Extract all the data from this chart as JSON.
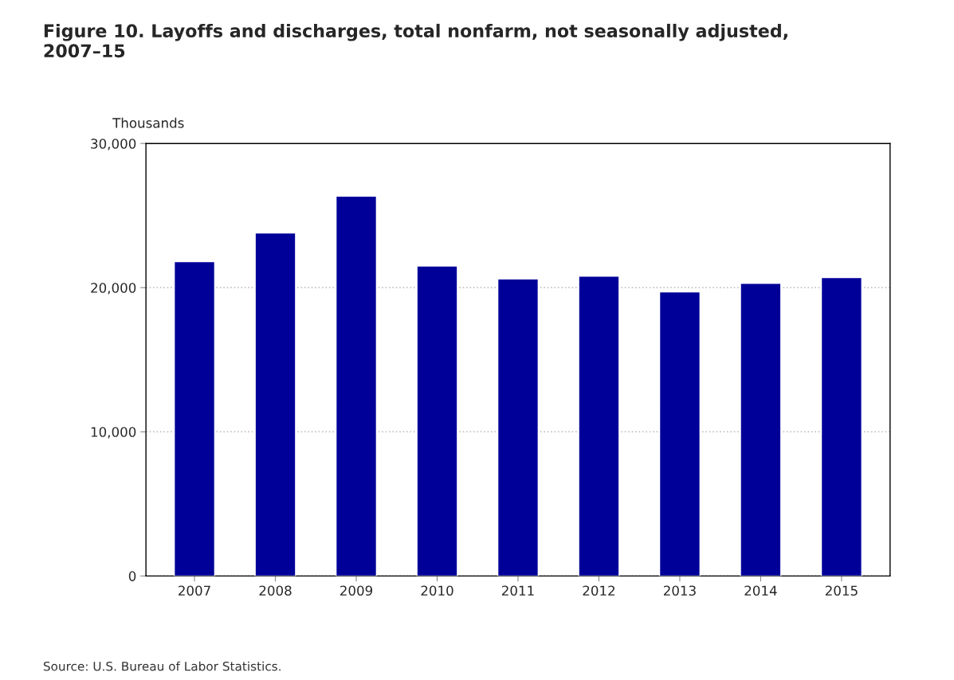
{
  "chart_data": {
    "type": "bar",
    "title": "Figure 10. Layoffs and discharges, total nonfarm, not seasonally adjusted,\n2007–15",
    "ylabel": "Thousands",
    "categories": [
      "2007",
      "2008",
      "2009",
      "2010",
      "2011",
      "2012",
      "2013",
      "2014",
      "2015"
    ],
    "series": [
      {
        "color": "#000099",
        "values": [
          21800,
          23800,
          26350,
          21500,
          20600,
          20800,
          19700,
          20300,
          20700
        ]
      }
    ],
    "ylim": [
      0,
      30000
    ],
    "yticks": [
      {
        "value": 0,
        "label": "0"
      },
      {
        "value": 10000,
        "label": "10,000"
      },
      {
        "value": 20000,
        "label": "20,000"
      },
      {
        "value": 30000,
        "label": "30,000"
      }
    ],
    "grid": "y",
    "annotations": [
      "Source: U.S. Bureau of Labor Statistics."
    ]
  }
}
